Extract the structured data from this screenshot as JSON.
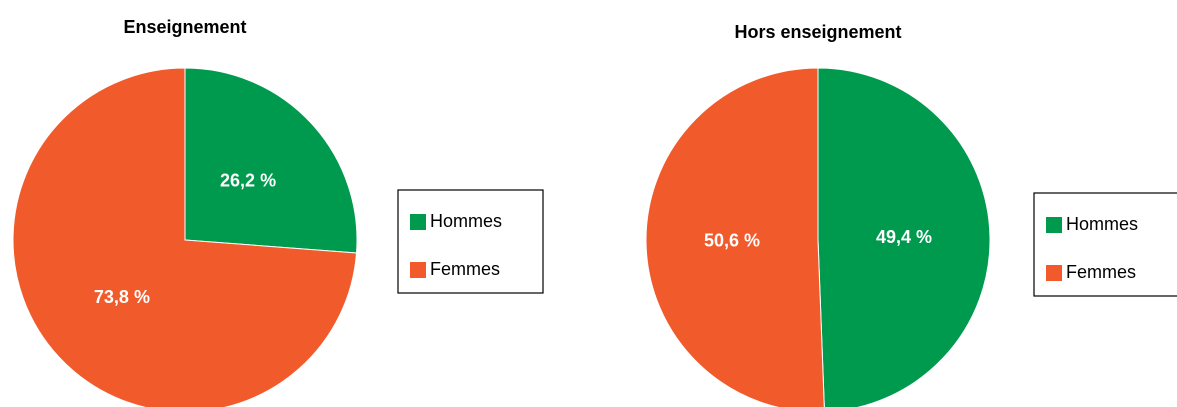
{
  "chart_data": [
    {
      "type": "pie",
      "title": "Enseignement",
      "categories": [
        "Hommes",
        "Femmes"
      ],
      "values": [
        26.2,
        73.8
      ],
      "value_labels": [
        "26,2 %",
        "73,8 %"
      ],
      "colors": [
        "#009a4e",
        "#f15a2b"
      ]
    },
    {
      "type": "pie",
      "title": "Hors enseignement",
      "categories": [
        "Hommes",
        "Femmes"
      ],
      "values": [
        49.4,
        50.6
      ],
      "value_labels": [
        "49,4 %",
        "50,6 %"
      ],
      "colors": [
        "#009a4e",
        "#f15a2b"
      ]
    }
  ]
}
